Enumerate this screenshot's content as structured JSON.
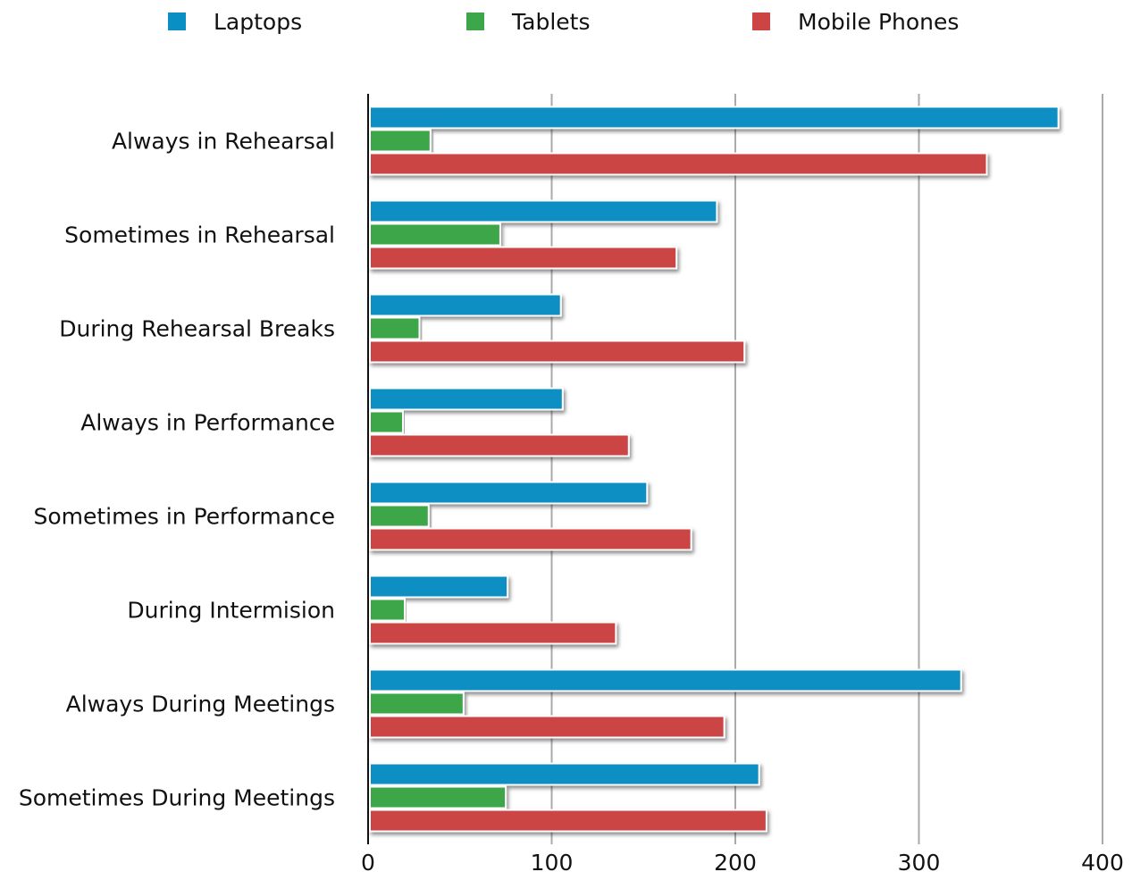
{
  "chart_data": {
    "type": "hbar",
    "categories": [
      "Always in Rehearsal",
      "Sometimes in Rehearsal",
      "During Rehearsal Breaks",
      "Always in Performance",
      "Sometimes in Performance",
      "During Intermision",
      "Always During Meetings",
      "Sometimes During Meetings"
    ],
    "series": [
      {
        "name": "Laptops",
        "color": "#0a8fc4",
        "values": [
          375,
          189,
          104,
          105,
          151,
          75,
          322,
          212
        ]
      },
      {
        "name": "Tablets",
        "color": "#3ca64a",
        "values": [
          33,
          71,
          27,
          18,
          32,
          19,
          51,
          74
        ]
      },
      {
        "name": "Mobile Phones",
        "color": "#cc4444",
        "values": [
          336,
          167,
          204,
          141,
          175,
          134,
          193,
          216
        ]
      }
    ],
    "xlim": [
      0,
      400
    ],
    "xticks": [
      0,
      100,
      200,
      300,
      400
    ],
    "grid": true,
    "legend": "top"
  }
}
